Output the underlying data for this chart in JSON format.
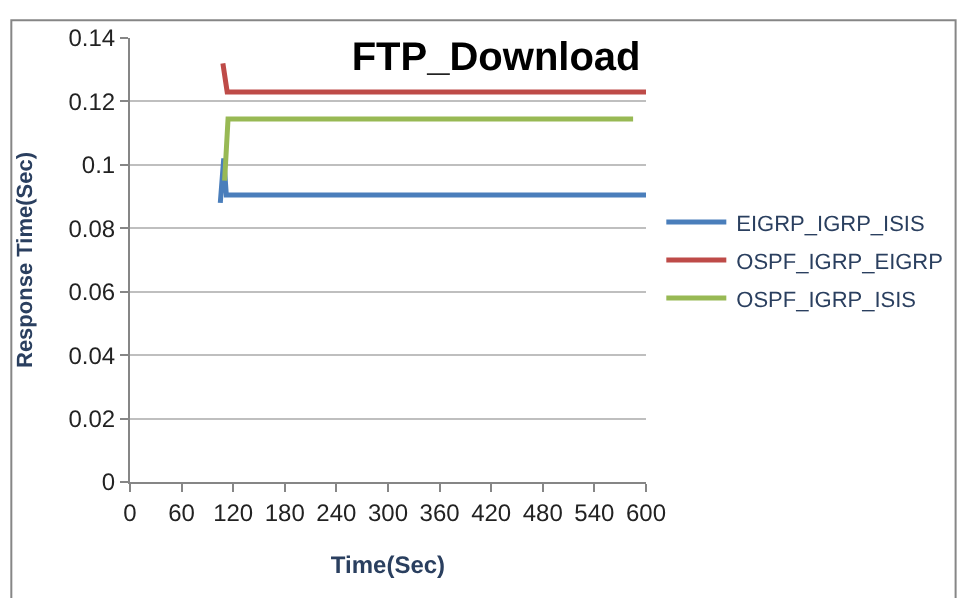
{
  "chart_data": {
    "type": "line",
    "title": "FTP_Download",
    "xlabel": "Time(Sec)",
    "ylabel": "Response Time(Sec)",
    "xlim": [
      0,
      600
    ],
    "xticks": [
      0,
      60,
      120,
      180,
      240,
      300,
      360,
      420,
      480,
      540,
      600
    ],
    "ylim": [
      0,
      0.14
    ],
    "yticks": [
      0,
      0.02,
      0.04,
      0.06,
      0.08,
      0.1,
      0.12,
      0.14
    ],
    "grid": "y",
    "legend": "right",
    "marker": "none",
    "line_style": "solid",
    "series": [
      {
        "name": "EIGRP_IGRP_ISIS",
        "color": "#4a7ebb",
        "x": [
          105,
          109,
          112,
          600
        ],
        "values": [
          0.088,
          0.102,
          0.0905,
          0.0905
        ]
      },
      {
        "name": "OSPF_IGRP_EIGRP",
        "color": "#be4b48",
        "x": [
          108,
          113,
          600
        ],
        "values": [
          0.132,
          0.123,
          0.123
        ]
      },
      {
        "name": "OSPF_IGRP_ISIS",
        "color": "#98b954",
        "x": [
          110,
          114,
          585
        ],
        "values": [
          0.095,
          0.1145,
          0.1145
        ]
      }
    ]
  }
}
